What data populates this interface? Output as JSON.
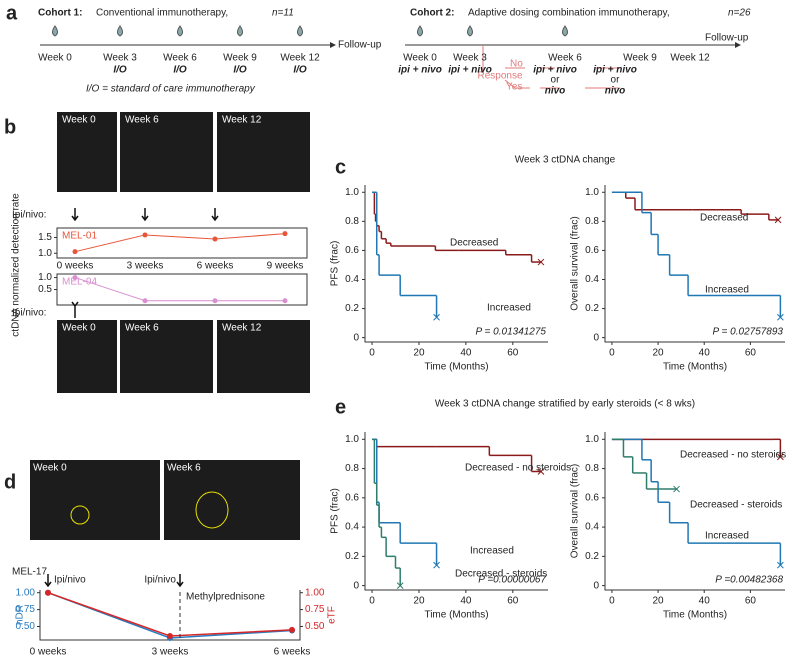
{
  "panel_a": {
    "label": "a",
    "cohort1": {
      "title": "Cohort 1:",
      "subtitle": "Conventional immunotherapy,",
      "n": "n=11",
      "weeks": [
        "Week 0",
        "Week 3",
        "Week 6",
        "Week 9",
        "Week 12"
      ],
      "treatments": [
        null,
        "I/O",
        "I/O",
        "I/O",
        "I/O"
      ],
      "follow_up": "Follow-up",
      "note": "I/O = standard of care immunotherapy"
    },
    "cohort2": {
      "title": "Cohort 2:",
      "subtitle": "Adaptive dosing combination immunotherapy,",
      "n": "n=26",
      "weeks": [
        "Week 0",
        "Week 3",
        "Week 6",
        "Week 9",
        "Week 12"
      ],
      "treatments": [
        "ipi + nivo",
        "ipi + nivo"
      ],
      "follow_up": "Follow-up",
      "response": "Response",
      "no": "No",
      "yes": "Yes",
      "branch_no": [
        "ipi + nivo",
        "ipi + nivo"
      ],
      "or": [
        "or",
        "or"
      ],
      "branch_yes": [
        "nivo",
        "nivo"
      ]
    }
  },
  "panel_b": {
    "label": "b",
    "top_images": [
      "Week 0",
      "Week 6",
      "Week 12"
    ],
    "bottom_images": [
      "Week 0",
      "Week 6",
      "Week 12"
    ],
    "y_label": "ctDNA normalized detection rate",
    "dosing_label": "Ipi/nivo:",
    "x_categories": [
      "0 weeks",
      "3 weeks",
      "6 weeks",
      "9 weeks"
    ],
    "charts": [
      {
        "type": "line",
        "name": "MEL-01",
        "color": "#e8553a",
        "values": [
          1.05,
          1.58,
          1.45,
          1.62
        ],
        "ylim": [
          0.85,
          1.8
        ],
        "yticks": [
          {
            "value": 1,
            "label": "1.0"
          },
          1.5
        ]
      },
      {
        "type": "line",
        "name": "MEL-04",
        "color": "#d98ed0",
        "values": [
          1.0,
          0.03,
          0.03,
          0.03
        ],
        "ylim": [
          -0.15,
          1.15
        ],
        "yticks": [
          0.5,
          {
            "value": 1,
            "label": "1.0"
          }
        ]
      }
    ]
  },
  "panel_c": {
    "label": "c",
    "title": "Week 3 ctDNA change",
    "charts": [
      {
        "type": "step",
        "y_label": "PFS (frac)",
        "x_label": "Time (Months)",
        "p_value": "P = 0.01341275",
        "xlim": [
          -3,
          75
        ],
        "xticks": [
          0,
          20,
          40,
          60
        ],
        "ylim": [
          -0.03,
          1.05
        ],
        "yticks": [
          0,
          0.2,
          0.4,
          0.6,
          0.8,
          {
            "value": 1,
            "label": "1.0"
          }
        ],
        "series": [
          {
            "name": "Decreased",
            "color": "#8b1a1a",
            "x": [
              0,
              1,
              1.5,
              2,
              3,
              4,
              6,
              8,
              27,
              37,
              57,
              68,
              72
            ],
            "values": [
              1,
              0.85,
              0.8,
              0.77,
              0.73,
              0.68,
              0.65,
              0.63,
              0.6,
              0.6,
              0.57,
              0.52,
              0.52
            ]
          },
          {
            "name": "Increased",
            "color": "#1f77b4",
            "x": [
              0,
              2,
              3,
              12,
              27.5
            ],
            "values": [
              1,
              0.57,
              0.43,
              0.29,
              0.14
            ]
          }
        ]
      },
      {
        "type": "step",
        "y_label": "Overall survival (frac)",
        "x_label": "Time (Months)",
        "p_value": "P = 0.02757893",
        "xlim": [
          -3,
          75
        ],
        "xticks": [
          0,
          20,
          40,
          60
        ],
        "ylim": [
          -0.03,
          1.05
        ],
        "yticks": [
          0,
          0.2,
          0.4,
          0.6,
          0.8,
          {
            "value": 1,
            "label": "1.0"
          }
        ],
        "series": [
          {
            "name": "Decreased",
            "color": "#8b1a1a",
            "x": [
              0,
              6,
              10,
              35,
              56,
              68,
              72
            ],
            "values": [
              1,
              0.96,
              0.88,
              0.88,
              0.85,
              0.81,
              0.81
            ]
          },
          {
            "name": "Increased",
            "color": "#1f77b4",
            "x": [
              0,
              13,
              17,
              20,
              25,
              33,
              73
            ],
            "values": [
              1,
              0.86,
              0.71,
              0.57,
              0.43,
              0.29,
              0.14
            ]
          }
        ]
      }
    ]
  },
  "panel_e": {
    "label": "e",
    "title": "Week 3 ctDNA change stratified by early steroids (< 8 wks)",
    "charts": [
      {
        "type": "step",
        "y_label": "PFS (frac)",
        "x_label": "Time (Months)",
        "p_value": "P =0.00000067",
        "xlim": [
          -3,
          75
        ],
        "xticks": [
          0,
          20,
          40,
          60
        ],
        "ylim": [
          -0.03,
          1.05
        ],
        "yticks": [
          0,
          0.2,
          0.4,
          0.6,
          0.8,
          {
            "value": 1,
            "label": "1.0"
          }
        ],
        "series": [
          {
            "name": "Decreased - no steroids",
            "color": "#8b1a1a",
            "x": [
              0,
              2,
              27,
              50,
              68,
              72
            ],
            "values": [
              1,
              0.95,
              0.95,
              0.89,
              0.78,
              0.78
            ]
          },
          {
            "name": "Increased",
            "color": "#1f77b4",
            "x": [
              0,
              2,
              3,
              12,
              27.5
            ],
            "values": [
              1,
              0.57,
              0.43,
              0.29,
              0.14
            ]
          },
          {
            "name": "Decreased - steroids",
            "color": "#2e7d6b",
            "x": [
              0,
              1,
              2,
              3,
              4,
              6,
              10,
              12
            ],
            "values": [
              1,
              0.7,
              0.55,
              0.4,
              0.33,
              0.2,
              0.12,
              0
            ]
          }
        ]
      },
      {
        "type": "step",
        "y_label": "Overall survival (frac)",
        "x_label": "Time (Months)",
        "p_value": "P =0.00482368",
        "xlim": [
          -3,
          75
        ],
        "xticks": [
          0,
          20,
          40,
          60
        ],
        "ylim": [
          -0.03,
          1.05
        ],
        "yticks": [
          0,
          0.2,
          0.4,
          0.6,
          0.8,
          {
            "value": 1,
            "label": "1.0"
          }
        ],
        "series": [
          {
            "name": "Decreased - no steroids",
            "color": "#8b1a1a",
            "x": [
              0,
              70,
              73
            ],
            "values": [
              1,
              1,
              0.88
            ]
          },
          {
            "name": "Increased",
            "color": "#1f77b4",
            "x": [
              0,
              13,
              17,
              20,
              25,
              33,
              73
            ],
            "values": [
              1,
              0.86,
              0.71,
              0.57,
              0.43,
              0.29,
              0.14
            ]
          },
          {
            "name": "Decreased - steroids",
            "color": "#2e7d6b",
            "x": [
              0,
              5,
              9,
              15,
              28
            ],
            "values": [
              1,
              0.88,
              0.77,
              0.66,
              0.66
            ]
          }
        ]
      }
    ]
  },
  "panel_d": {
    "label": "d",
    "images": [
      "Week 0",
      "Week 6"
    ],
    "patient": "MEL-17",
    "chart_data": {
      "type": "line",
      "categories": [
        "0 weeks",
        "3 weeks",
        "6 weeks"
      ],
      "annotations": [
        "Ipi/nivo",
        "Ipi/nivo",
        "Methylprednisone"
      ],
      "ylim": [
        0.3,
        1.04
      ],
      "yticks": [
        {
          "value": 0.5,
          "label": "0.50"
        },
        0.75,
        {
          "value": 1,
          "label": "1.00"
        }
      ],
      "y2lim": [
        0.3,
        1.04
      ],
      "y2ticks": [
        {
          "value": 0.5,
          "label": "0.50"
        },
        0.75,
        {
          "value": 1,
          "label": "1.00"
        }
      ],
      "series": [
        {
          "name": "nDR",
          "color": "#2a7bbf",
          "values": [
            1.0,
            0.33,
            0.44
          ]
        },
        {
          "name": "eTF",
          "color": "#d62728",
          "axis": "y2",
          "values": [
            1.0,
            0.36,
            0.45
          ]
        }
      ]
    }
  }
}
